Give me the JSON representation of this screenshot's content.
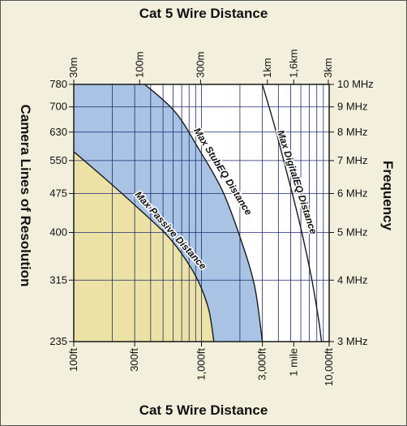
{
  "chart_data": {
    "type": "area",
    "top_title": "Cat 5  Wire Distance",
    "bottom_title": "Cat 5  Wire Distance",
    "left_label": "Camera Lines of Resolution",
    "right_label": "Frequency",
    "x_axis_scale": "log",
    "x_range_ft": [
      100,
      10000
    ],
    "top_ticks": [
      {
        "label": "30m",
        "ft": 100
      },
      {
        "label": "100m",
        "ft": 328
      },
      {
        "label": "300m",
        "ft": 984
      },
      {
        "label": "1km",
        "ft": 3281
      },
      {
        "label": "1,6km",
        "ft": 5280
      },
      {
        "label": "3km",
        "ft": 9843
      }
    ],
    "bottom_ticks": [
      {
        "label": "100ft",
        "ft": 100
      },
      {
        "label": "300ft",
        "ft": 300
      },
      {
        "label": "1,000ft",
        "ft": 1000
      },
      {
        "label": "3,000ft",
        "ft": 3000
      },
      {
        "label": "1 mile",
        "ft": 5280
      },
      {
        "label": "10,000ft",
        "ft": 10000
      }
    ],
    "y_range_mhz": [
      3,
      10
    ],
    "left_ticks": [
      {
        "label": "780",
        "mhz": 10
      },
      {
        "label": "700",
        "mhz": 9
      },
      {
        "label": "630",
        "mhz": 8
      },
      {
        "label": "550",
        "mhz": 7
      },
      {
        "label": "475",
        "mhz": 6
      },
      {
        "label": "400",
        "mhz": 5
      },
      {
        "label": "315",
        "mhz": 4
      },
      {
        "label": "235",
        "mhz": 3
      }
    ],
    "right_ticks": [
      {
        "label": "10 MHz",
        "mhz": 10
      },
      {
        "label": "9 MHz",
        "mhz": 9
      },
      {
        "label": "8 MHz",
        "mhz": 8
      },
      {
        "label": "7 MHz",
        "mhz": 7
      },
      {
        "label": "6 MHz",
        "mhz": 6
      },
      {
        "label": "5 MHz",
        "mhz": 5
      },
      {
        "label": "4 MHz",
        "mhz": 4
      },
      {
        "label": "3 MHz",
        "mhz": 3
      }
    ],
    "series": [
      {
        "name": "Max Passive Distance",
        "fill": "#ede2a6",
        "points": [
          {
            "ft": 100,
            "mhz": 7.3
          },
          {
            "ft": 180,
            "mhz": 6.4
          },
          {
            "ft": 320,
            "mhz": 5.6
          },
          {
            "ft": 550,
            "mhz": 4.9
          },
          {
            "ft": 800,
            "mhz": 4.3
          },
          {
            "ft": 1000,
            "mhz": 3.85
          },
          {
            "ft": 1150,
            "mhz": 3.45
          },
          {
            "ft": 1250,
            "mhz": 3.0
          }
        ]
      },
      {
        "name": "Max StubEQ Distance",
        "fill": "#a9c3e4",
        "points": [
          {
            "ft": 360,
            "mhz": 10
          },
          {
            "ft": 620,
            "mhz": 8.8
          },
          {
            "ft": 950,
            "mhz": 7.4
          },
          {
            "ft": 1450,
            "mhz": 6.1
          },
          {
            "ft": 2000,
            "mhz": 4.9
          },
          {
            "ft": 2600,
            "mhz": 3.9
          },
          {
            "ft": 3000,
            "mhz": 3.0
          }
        ]
      },
      {
        "name": "Max DigitalEQ Distance",
        "fill": "#ffffff",
        "points": [
          {
            "ft": 3000,
            "mhz": 10
          },
          {
            "ft": 3700,
            "mhz": 8.3
          },
          {
            "ft": 4600,
            "mhz": 6.7
          },
          {
            "ft": 5800,
            "mhz": 5.3
          },
          {
            "ft": 7200,
            "mhz": 4.1
          },
          {
            "ft": 8300,
            "mhz": 3.3
          },
          {
            "ft": 8700,
            "mhz": 3.0
          }
        ]
      }
    ],
    "grid": true,
    "colors": {
      "panel_bg": "#f2f0dc",
      "grid": "#1a2a6c",
      "border": "#1a1a1a"
    }
  }
}
